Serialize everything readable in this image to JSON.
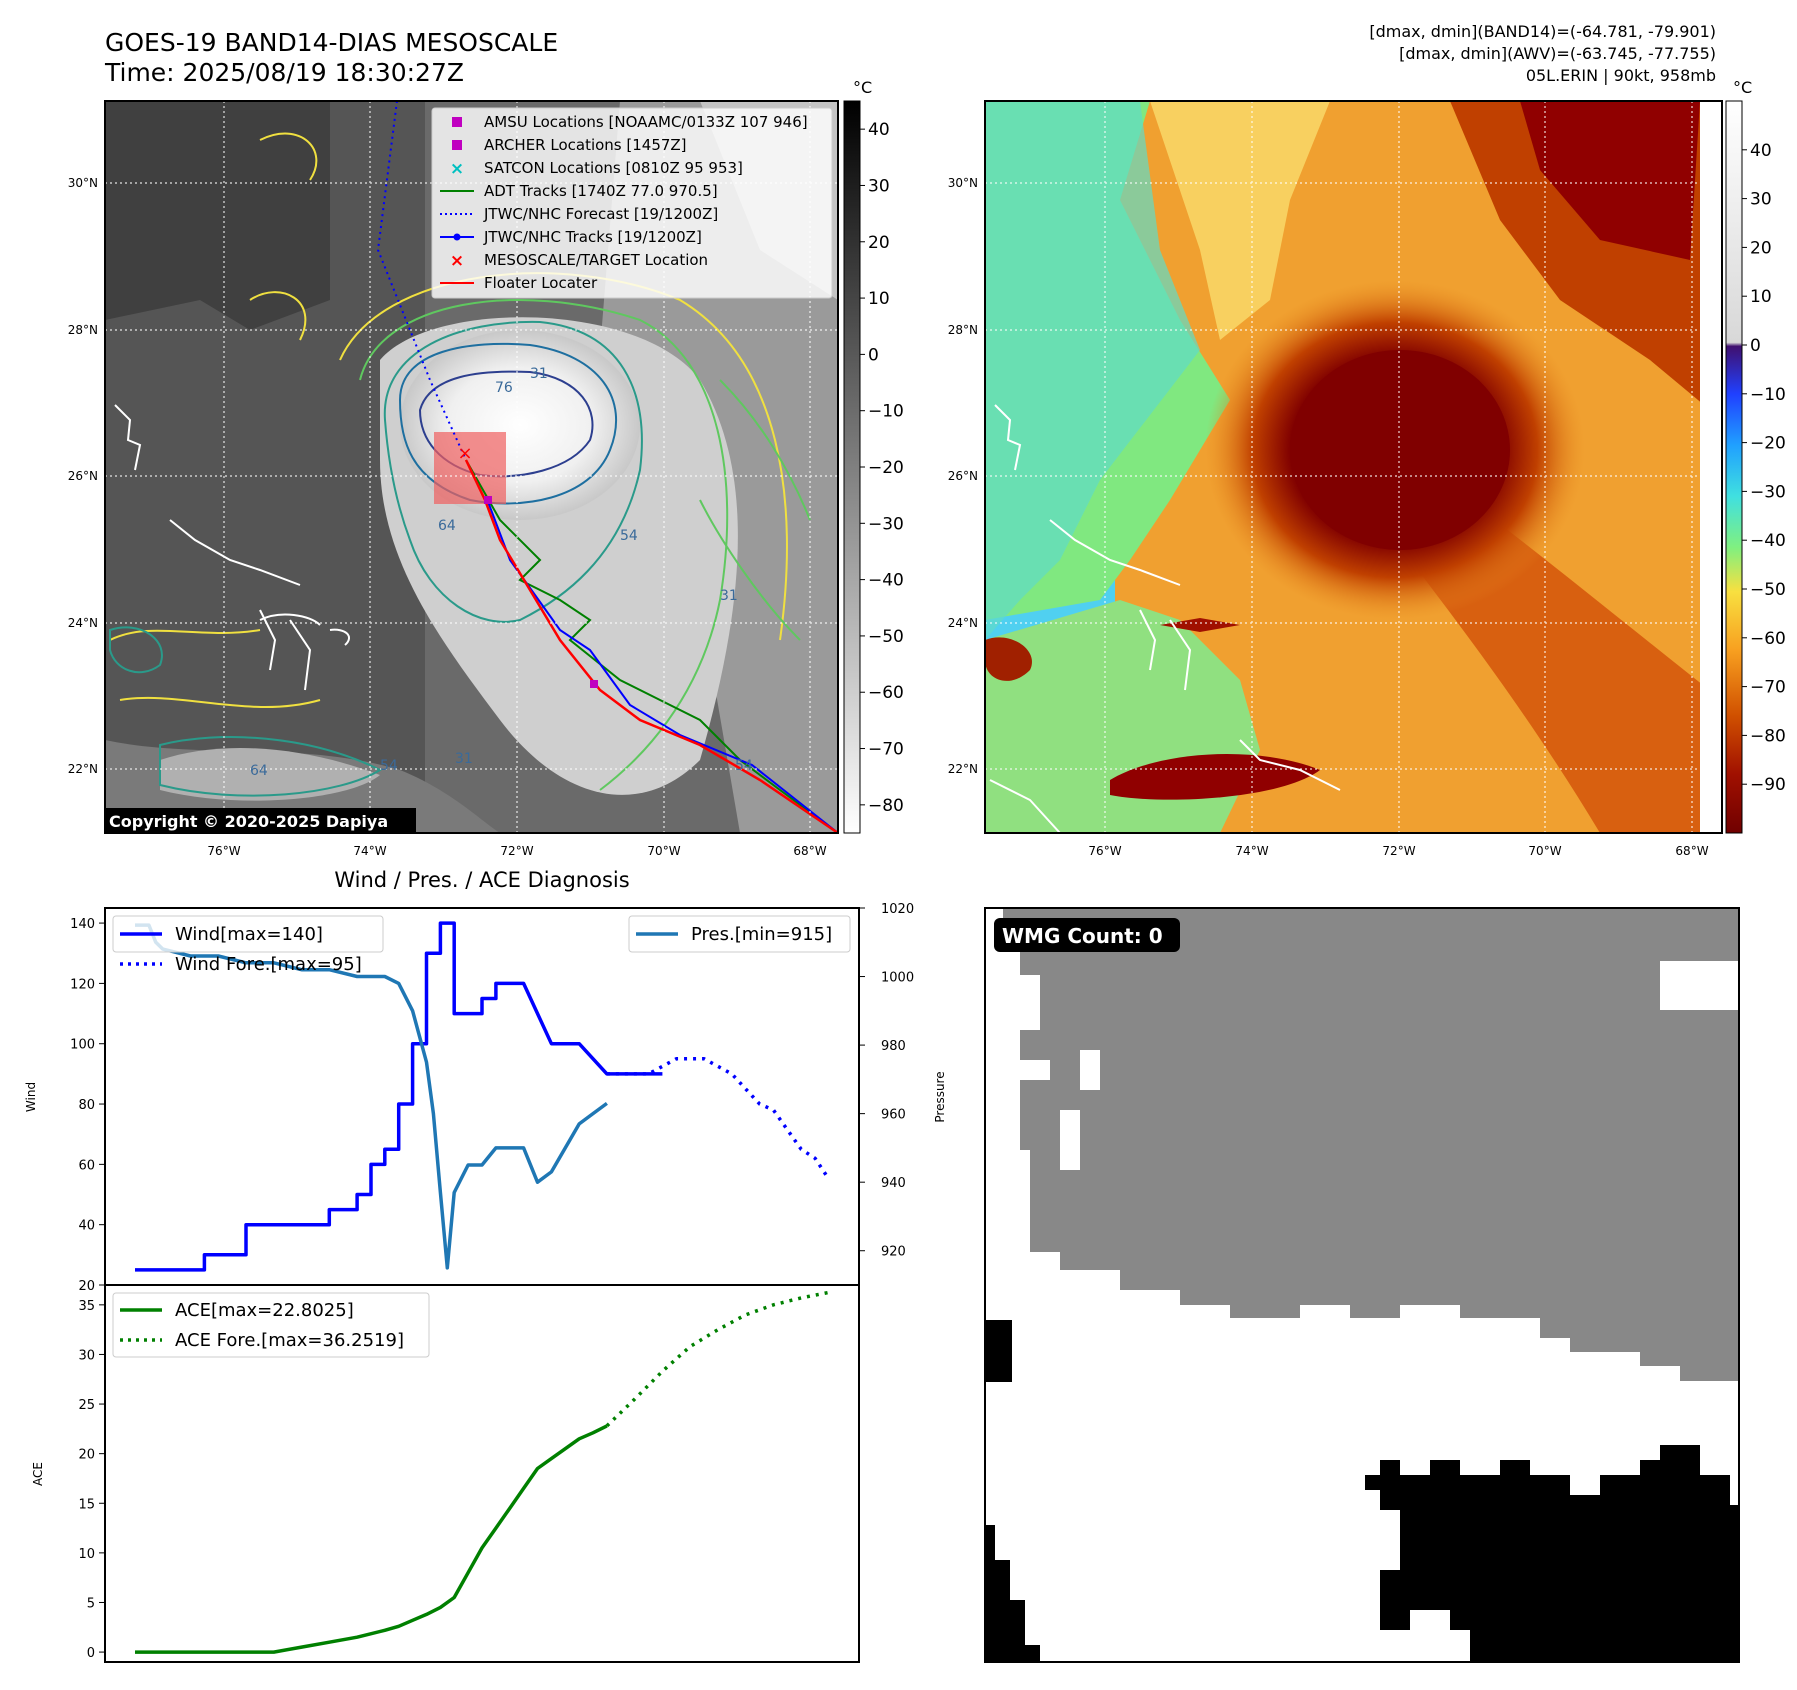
{
  "header": {
    "title_line1": "GOES-19 BAND14-DIAS MESOSCALE",
    "title_line2": "Time: 2025/08/19 18:30:27Z",
    "stats_line1": "[dmax, dmin](BAND14)=(-64.781, -79.901)",
    "stats_line2": "[dmax, dmin](AWV)=(-63.745, -77.755)",
    "stats_line3": "05L.ERIN | 90kt, 958mb"
  },
  "map": {
    "lat_labels": [
      "30°N",
      "28°N",
      "26°N",
      "24°N",
      "22°N"
    ],
    "lon_labels": [
      "76°W",
      "74°W",
      "72°W",
      "70°W",
      "68°W"
    ],
    "copyright": "Copyright © 2020-2025 Dapiya",
    "contour_labels": [
      "31",
      "54",
      "64",
      "76",
      "31",
      "54",
      "64",
      "31",
      "54",
      "64",
      "31",
      "54"
    ],
    "legend": [
      {
        "label": "AMSU Locations [NOAAMC/0133Z 107 946]",
        "kind": "square",
        "color": "#c000c0"
      },
      {
        "label": "ARCHER Locations [1457Z]",
        "kind": "square",
        "color": "#c000c0"
      },
      {
        "label": "SATCON Locations [0810Z 95 953]",
        "kind": "x",
        "color": "#00c0c0"
      },
      {
        "label": "ADT Tracks [1740Z 77.0 970.5]",
        "kind": "line",
        "color": "#008000"
      },
      {
        "label": "JTWC/NHC Forecast [19/1200Z]",
        "kind": "dotted",
        "color": "#0000ff"
      },
      {
        "label": "JTWC/NHC Tracks [19/1200Z]",
        "kind": "line-dot",
        "color": "#0000ff"
      },
      {
        "label": "MESOSCALE/TARGET Location",
        "kind": "x",
        "color": "#ff0000"
      },
      {
        "label": "Floater Locater",
        "kind": "line",
        "color": "#ff0000"
      }
    ]
  },
  "colorbars": {
    "unit": "°C",
    "gray_ticks": [
      "40",
      "30",
      "20",
      "10",
      "0",
      "−10",
      "−20",
      "−30",
      "−40",
      "−50",
      "−60",
      "−70",
      "−80"
    ],
    "color_ticks": [
      "40",
      "30",
      "20",
      "10",
      "0",
      "−10",
      "−20",
      "−30",
      "−40",
      "−50",
      "−60",
      "−70",
      "−80",
      "−90"
    ]
  },
  "chart_data": [
    {
      "type": "line",
      "title": "Wind / Pres. / ACE Diagnosis",
      "ylabel": "Wind",
      "y2label": "Pressure",
      "ylim": [
        20,
        145
      ],
      "y2lim": [
        910,
        1020
      ],
      "yticks": [
        20,
        40,
        60,
        80,
        100,
        120,
        140
      ],
      "y2ticks": [
        920,
        940,
        960,
        980,
        1000,
        1020
      ],
      "x_range": [
        0,
        50
      ],
      "series": [
        {
          "name": "Wind[max=140]",
          "axis": "left",
          "color": "#0000ff",
          "style": "solid",
          "x": [
            0,
            5,
            5,
            8,
            8,
            9,
            9,
            14,
            14,
            15,
            15,
            16,
            16,
            17,
            17,
            18,
            18,
            19,
            19,
            20,
            20,
            21,
            21,
            22,
            22,
            23,
            23,
            24,
            24,
            25,
            25,
            26,
            26,
            27,
            27,
            28,
            30,
            32,
            34,
            35,
            38
          ],
          "y": [
            25,
            25,
            30,
            30,
            40,
            40,
            40,
            40,
            45,
            45,
            45,
            45,
            50,
            50,
            60,
            60,
            65,
            65,
            80,
            80,
            100,
            100,
            130,
            130,
            140,
            140,
            110,
            110,
            110,
            110,
            115,
            115,
            120,
            120,
            120,
            120,
            100,
            100,
            90,
            90,
            90
          ]
        },
        {
          "name": "Wind Fore.[max=95]",
          "axis": "left",
          "color": "#0000ff",
          "style": "dotted",
          "x": [
            34,
            37,
            39,
            41,
            43,
            45,
            46,
            48,
            49,
            50
          ],
          "y": [
            90,
            90,
            95,
            95,
            90,
            80,
            78,
            65,
            62,
            55
          ]
        },
        {
          "name": "Pres.[min=915]",
          "axis": "right",
          "color": "#1f77b4",
          "style": "solid",
          "x": [
            0,
            1,
            1.5,
            2,
            4,
            6,
            8,
            10,
            12,
            14,
            16,
            17,
            18,
            19,
            20,
            21,
            21.5,
            22,
            22.5,
            23,
            24,
            25,
            26,
            27,
            28,
            29,
            30,
            31,
            32,
            33,
            34
          ],
          "y": [
            1015,
            1015,
            1010,
            1008,
            1006,
            1006,
            1004,
            1004,
            1002,
            1002,
            1000,
            1000,
            1000,
            998,
            990,
            975,
            960,
            937,
            915,
            937,
            945,
            945,
            950,
            950,
            950,
            940,
            943,
            950,
            957,
            960,
            963
          ]
        }
      ]
    },
    {
      "type": "line",
      "ylabel": "ACE",
      "ylim": [
        -1,
        37
      ],
      "yticks": [
        0,
        5,
        10,
        15,
        20,
        25,
        30,
        35
      ],
      "x_range": [
        0,
        50
      ],
      "series": [
        {
          "name": "ACE[max=22.8025]",
          "color": "#008000",
          "style": "solid",
          "x": [
            0,
            2,
            4,
            6,
            8,
            10,
            12,
            14,
            16,
            18,
            19,
            20,
            21,
            22,
            23,
            24,
            25,
            26,
            27,
            28,
            29,
            30,
            31,
            32,
            33,
            34
          ],
          "y": [
            0,
            0,
            0,
            0,
            0,
            0,
            0.5,
            1,
            1.5,
            2.2,
            2.6,
            3.2,
            3.8,
            4.5,
            5.5,
            8,
            10.5,
            12.5,
            14.5,
            16.5,
            18.5,
            19.5,
            20.5,
            21.5,
            22.1,
            22.8
          ]
        },
        {
          "name": "ACE Fore.[max=36.2519]",
          "color": "#008000",
          "style": "dotted",
          "x": [
            34,
            36,
            38,
            40,
            42,
            44,
            46,
            48,
            50
          ],
          "y": [
            22.8,
            25.5,
            28.3,
            30.8,
            32.5,
            34,
            35,
            35.7,
            36.25
          ]
        }
      ]
    }
  ],
  "wmg": {
    "label": "WMG Count: 0"
  }
}
